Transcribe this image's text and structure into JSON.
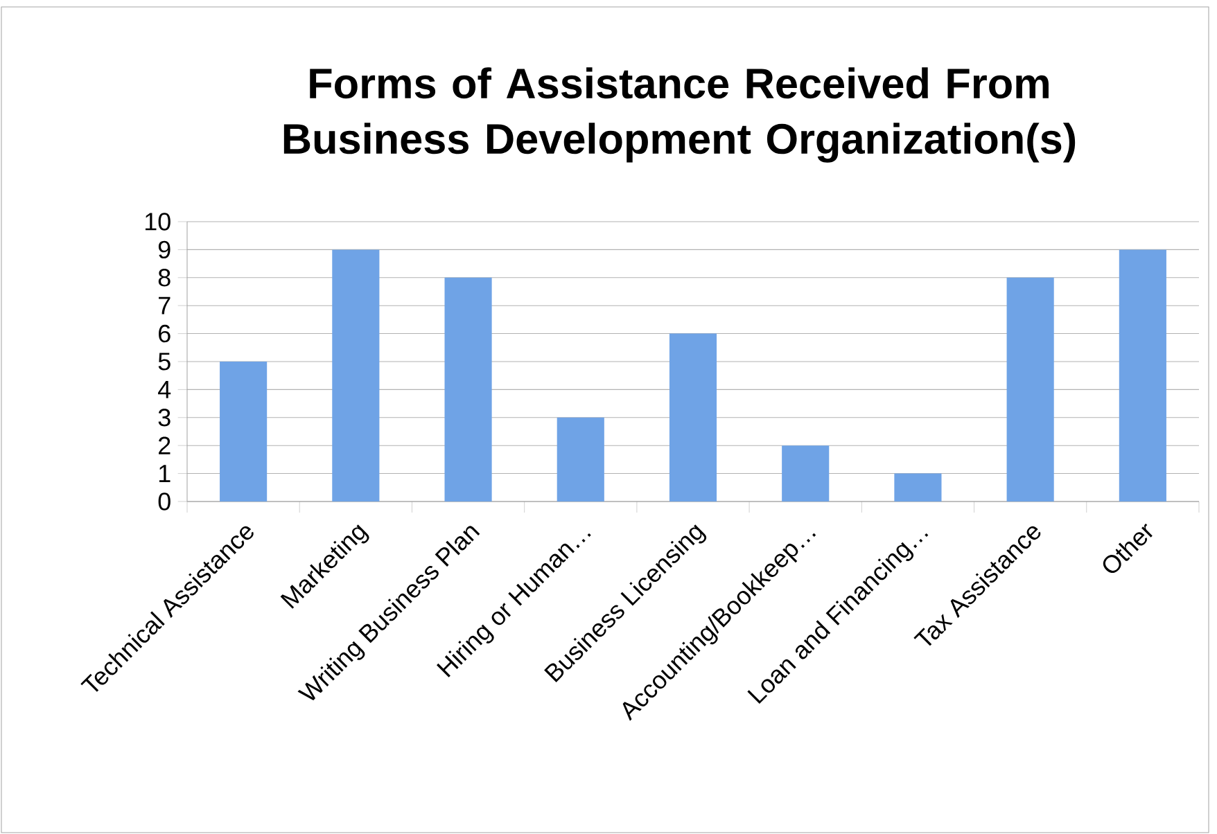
{
  "chart_data": {
    "type": "bar",
    "title": "Forms of Assistance Received From Business Development Organization(s)",
    "categories": [
      "Technical Assistance",
      "Marketing",
      "Writing Business Plan",
      "Hiring or Human…",
      "Business Licensing",
      "Accounting/Bookkeep…",
      "Loan and Financing…",
      "Tax Assistance",
      "Other"
    ],
    "values": [
      5,
      9,
      8,
      3,
      6,
      2,
      1,
      8,
      9
    ],
    "color": "#6fa3e6",
    "ylim": [
      0,
      10
    ],
    "yticks": [
      0,
      1,
      2,
      3,
      4,
      5,
      6,
      7,
      8,
      9,
      10
    ],
    "grid": "y"
  }
}
